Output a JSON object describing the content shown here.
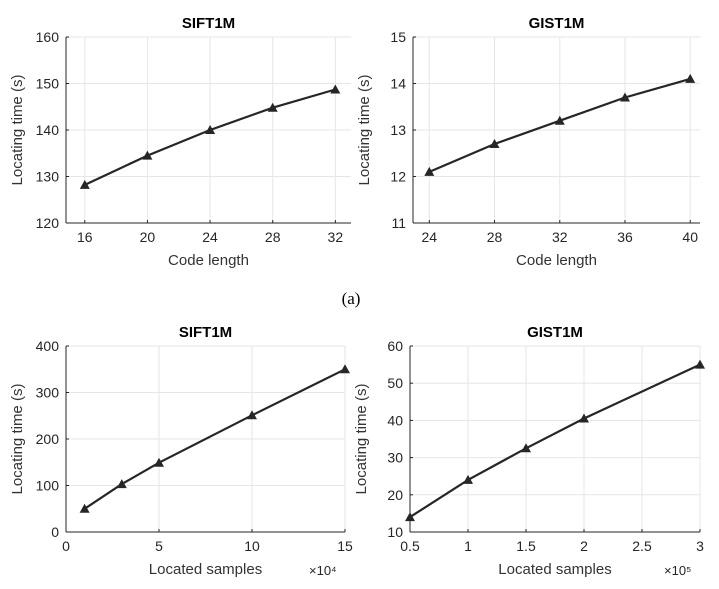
{
  "figure": {
    "caption_top": "(a)"
  },
  "chart_data": [
    {
      "type": "line",
      "title": "SIFT1M",
      "xlabel": "Code length",
      "ylabel": "Locating time (s)",
      "xlim": [
        14.8,
        33
      ],
      "ylim": [
        120,
        160
      ],
      "xticks": [
        16,
        20,
        24,
        28,
        32
      ],
      "xtick_labels": [
        "16",
        "20",
        "24",
        "28",
        "32"
      ],
      "yticks": [
        120,
        130,
        140,
        150,
        160
      ],
      "ytick_labels": [
        "120",
        "130",
        "140",
        "150",
        "160"
      ],
      "x_exponent": "",
      "grid": true,
      "series": [
        {
          "x": [
            16,
            20,
            24,
            28,
            32
          ],
          "values": [
            128.2,
            134.5,
            140.0,
            144.8,
            148.7
          ],
          "marker": "triangle",
          "color": "#262626"
        }
      ]
    },
    {
      "type": "line",
      "title": "GIST1M",
      "xlabel": "Code length",
      "ylabel": "Locating time (s)",
      "xlim": [
        23,
        40.6
      ],
      "ylim": [
        11,
        15
      ],
      "xticks": [
        24,
        28,
        32,
        36,
        40
      ],
      "xtick_labels": [
        "24",
        "28",
        "32",
        "36",
        "40"
      ],
      "yticks": [
        11,
        12,
        13,
        14,
        15
      ],
      "ytick_labels": [
        "11",
        "12",
        "13",
        "14",
        "15"
      ],
      "x_exponent": "",
      "grid": true,
      "series": [
        {
          "x": [
            24,
            28,
            32,
            36,
            40
          ],
          "values": [
            12.1,
            12.7,
            13.2,
            13.7,
            14.1
          ],
          "marker": "triangle",
          "color": "#262626"
        }
      ]
    },
    {
      "type": "line",
      "title": "SIFT1M",
      "xlabel": "Located samples",
      "ylabel": "Locating time (s)",
      "xlim": [
        0,
        15
      ],
      "ylim": [
        0,
        400
      ],
      "xticks": [
        0,
        5,
        10,
        15
      ],
      "xtick_labels": [
        "0",
        "5",
        "10",
        "15"
      ],
      "yticks": [
        0,
        100,
        200,
        300,
        400
      ],
      "ytick_labels": [
        "0",
        "100",
        "200",
        "300",
        "400"
      ],
      "x_exponent": "×10⁴",
      "grid": true,
      "series": [
        {
          "x": [
            1,
            3,
            5,
            10,
            15
          ],
          "values": [
            50,
            103,
            149,
            251,
            350
          ],
          "marker": "triangle",
          "color": "#262626"
        }
      ]
    },
    {
      "type": "line",
      "title": "GIST1M",
      "xlabel": "Located samples",
      "ylabel": "Locating time (s)",
      "xlim": [
        0.5,
        3
      ],
      "ylim": [
        10,
        60
      ],
      "xticks": [
        0.5,
        1,
        1.5,
        2,
        2.5,
        3
      ],
      "xtick_labels": [
        "0.5",
        "1",
        "1.5",
        "2",
        "2.5",
        "3"
      ],
      "yticks": [
        10,
        20,
        30,
        40,
        50,
        60
      ],
      "ytick_labels": [
        "10",
        "20",
        "30",
        "40",
        "50",
        "60"
      ],
      "x_exponent": "×10⁵",
      "grid": true,
      "series": [
        {
          "x": [
            0.5,
            1,
            1.5,
            2,
            3
          ],
          "values": [
            14,
            24,
            32.5,
            40.5,
            55
          ],
          "marker": "triangle",
          "color": "#262626"
        }
      ]
    }
  ]
}
